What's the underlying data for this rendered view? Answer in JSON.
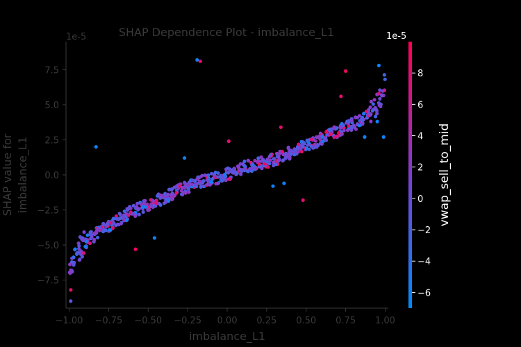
{
  "chart_data": {
    "type": "scatter",
    "title": "SHAP Dependence Plot - imbalance_L1",
    "xlabel": "imbalance_L1",
    "ylabel_line1": "SHAP value for",
    "ylabel_line2": "imbalance_L1",
    "y_offset_label": "1e-5",
    "xlim": [
      -1.02,
      1.02
    ],
    "ylim": [
      -9.5,
      9.5
    ],
    "x_ticks": [
      -1.0,
      -0.75,
      -0.5,
      -0.25,
      0.0,
      0.25,
      0.5,
      0.75,
      1.0
    ],
    "x_tick_labels": [
      "−1.00",
      "−0.75",
      "−0.50",
      "−0.25",
      "0.00",
      "0.25",
      "0.50",
      "0.75",
      "1.00"
    ],
    "y_ticks": [
      -7.5,
      -5.0,
      -2.5,
      0.0,
      2.5,
      5.0,
      7.5
    ],
    "y_tick_labels": [
      "−7.5",
      "−5.0",
      "−2.5",
      "0.0",
      "2.5",
      "5.0",
      "7.5"
    ],
    "colorbar": {
      "label": "vwap_sell_to_mid",
      "offset_label": "1e-5",
      "range": [
        -7,
        10
      ],
      "ticks": [
        -6,
        -4,
        -2,
        0,
        2,
        4,
        6,
        8
      ],
      "tick_labels": [
        "−6",
        "−4",
        "−2",
        "0",
        "2",
        "4",
        "6",
        "8"
      ],
      "low_color": "#008afb",
      "mid_color": "#7c3fcf",
      "high_color": "#ff0052"
    },
    "colors": {
      "background": "#000000",
      "dim_text": "#3a3a3a",
      "colorbar_text": "#ffffff"
    },
    "main_trend": [
      [
        -1.0,
        -7.0
      ],
      [
        -0.95,
        -5.5
      ],
      [
        -0.9,
        -4.8
      ],
      [
        -0.8,
        -4.0
      ],
      [
        -0.7,
        -3.2
      ],
      [
        -0.6,
        -2.6
      ],
      [
        -0.5,
        -2.1
      ],
      [
        -0.4,
        -1.6
      ],
      [
        -0.3,
        -1.1
      ],
      [
        -0.2,
        -0.6
      ],
      [
        -0.1,
        -0.3
      ],
      [
        0.0,
        0.0
      ],
      [
        0.1,
        0.5
      ],
      [
        0.2,
        0.8
      ],
      [
        0.3,
        1.1
      ],
      [
        0.4,
        1.6
      ],
      [
        0.5,
        2.1
      ],
      [
        0.6,
        2.6
      ],
      [
        0.7,
        3.1
      ],
      [
        0.8,
        3.6
      ],
      [
        0.9,
        4.3
      ],
      [
        0.95,
        5.0
      ],
      [
        1.0,
        6.5
      ]
    ],
    "points_per_bin": 8,
    "notable_points": [
      {
        "x": -0.19,
        "y": 8.2,
        "c": -6.0
      },
      {
        "x": -0.17,
        "y": 8.1,
        "c": 8.0
      },
      {
        "x": -0.83,
        "y": 2.0,
        "c": -6.0
      },
      {
        "x": 0.48,
        "y": -1.8,
        "c": 8.0
      },
      {
        "x": 0.29,
        "y": -0.8,
        "c": -6.0
      },
      {
        "x": 0.36,
        "y": -0.6,
        "c": -6.0
      },
      {
        "x": -0.99,
        "y": -9.0,
        "c": -1.0
      },
      {
        "x": -0.99,
        "y": -8.2,
        "c": 8.0
      },
      {
        "x": 0.75,
        "y": 7.4,
        "c": 9.0
      },
      {
        "x": 0.96,
        "y": 7.8,
        "c": -6.0
      },
      {
        "x": 0.99,
        "y": 2.7,
        "c": -6.0
      },
      {
        "x": 0.87,
        "y": 2.7,
        "c": -6.0
      },
      {
        "x": -0.27,
        "y": 1.2,
        "c": -6.0
      },
      {
        "x": -0.46,
        "y": -4.5,
        "c": -6.0
      },
      {
        "x": -0.58,
        "y": -5.3,
        "c": 9.0
      },
      {
        "x": 0.34,
        "y": 3.4,
        "c": 8.0
      },
      {
        "x": 0.72,
        "y": 5.6,
        "c": 8.0
      },
      {
        "x": 0.95,
        "y": 3.8,
        "c": -6.0
      },
      {
        "x": -0.1,
        "y": -0.5,
        "c": -6.0
      },
      {
        "x": 0.01,
        "y": 2.4,
        "c": 8.0
      }
    ]
  }
}
